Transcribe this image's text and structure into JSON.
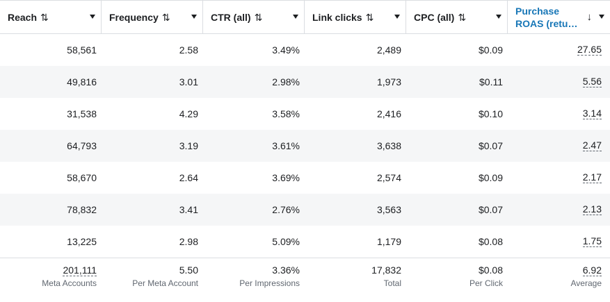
{
  "columns": [
    {
      "label": "Reach",
      "sort": "⇅"
    },
    {
      "label": "Frequency",
      "sort": "⇅"
    },
    {
      "label": "CTR (all)",
      "sort": "⇅"
    },
    {
      "label": "Link clicks",
      "sort": "⇅"
    },
    {
      "label": "CPC (all)",
      "sort": "⇅"
    },
    {
      "label": "Purchase ROAS (retu…",
      "sort": "↓"
    }
  ],
  "rows": [
    [
      "58,561",
      "2.58",
      "3.49%",
      "2,489",
      "$0.09",
      "27.65"
    ],
    [
      "49,816",
      "3.01",
      "2.98%",
      "1,973",
      "$0.11",
      "5.56"
    ],
    [
      "31,538",
      "4.29",
      "3.58%",
      "2,416",
      "$0.10",
      "3.14"
    ],
    [
      "64,793",
      "3.19",
      "3.61%",
      "3,638",
      "$0.07",
      "2.47"
    ],
    [
      "58,670",
      "2.64",
      "3.69%",
      "2,574",
      "$0.09",
      "2.17"
    ],
    [
      "78,832",
      "3.41",
      "2.76%",
      "3,563",
      "$0.07",
      "2.13"
    ],
    [
      "13,225",
      "2.98",
      "5.09%",
      "1,179",
      "$0.08",
      "1.75"
    ]
  ],
  "totals": [
    {
      "value": "201,111",
      "sub": "Meta Accounts"
    },
    {
      "value": "5.50",
      "sub": "Per Meta Account"
    },
    {
      "value": "3.36%",
      "sub": "Per Impressions"
    },
    {
      "value": "17,832",
      "sub": "Total"
    },
    {
      "value": "$0.08",
      "sub": "Per Click"
    },
    {
      "value": "6.92",
      "sub": "Average"
    }
  ],
  "colors": {
    "active_header": "#1877b7",
    "border": "#dadde1",
    "alt_row": "#f5f6f7",
    "muted_text": "#606770"
  }
}
